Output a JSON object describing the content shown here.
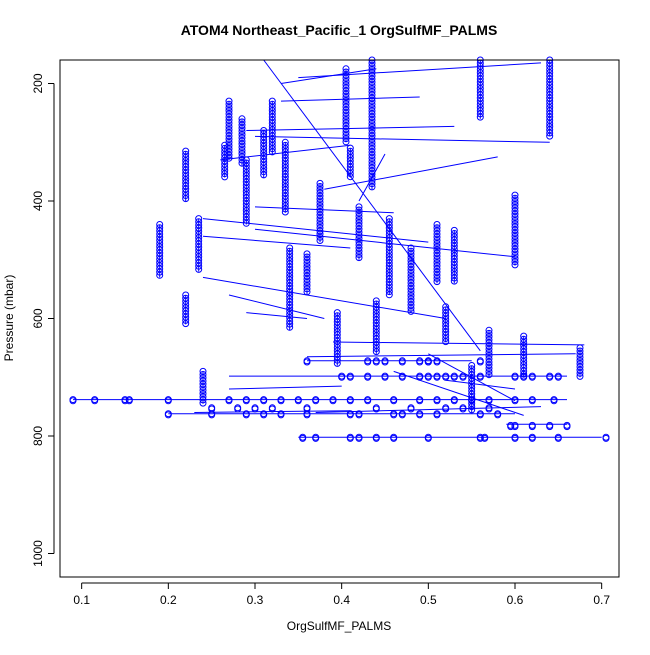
{
  "chart_data": {
    "type": "scatter",
    "title": "ATOM4 Northeast_Pacific_1 OrgSulfMF_PALMS",
    "xlabel": "OrgSulfMF_PALMS",
    "ylabel": "Pressure (mbar)",
    "xlim": [
      0.075,
      0.72
    ],
    "ylim": [
      1040,
      160
    ],
    "y_reversed": true,
    "x_ticks": [
      0.1,
      0.2,
      0.3,
      0.4,
      0.5,
      0.6,
      0.7
    ],
    "y_ticks": [
      200,
      400,
      600,
      800,
      1000
    ],
    "marker": "open-circle",
    "color": "#0000ff",
    "connected": true,
    "vertical_stacks": [
      {
        "x": 0.19,
        "p": [
          440,
          530
        ]
      },
      {
        "x": 0.22,
        "p": [
          315,
          400
        ]
      },
      {
        "x": 0.235,
        "p": [
          430,
          520
        ]
      },
      {
        "x": 0.27,
        "p": [
          230,
          330
        ]
      },
      {
        "x": 0.265,
        "p": [
          305,
          360
        ]
      },
      {
        "x": 0.285,
        "p": [
          260,
          340
        ]
      },
      {
        "x": 0.29,
        "p": [
          330,
          440
        ]
      },
      {
        "x": 0.31,
        "p": [
          280,
          360
        ]
      },
      {
        "x": 0.32,
        "p": [
          230,
          320
        ]
      },
      {
        "x": 0.335,
        "p": [
          300,
          420
        ]
      },
      {
        "x": 0.34,
        "p": [
          480,
          620
        ]
      },
      {
        "x": 0.375,
        "p": [
          370,
          470
        ]
      },
      {
        "x": 0.405,
        "p": [
          175,
          300
        ]
      },
      {
        "x": 0.41,
        "p": [
          310,
          360
        ]
      },
      {
        "x": 0.42,
        "p": [
          410,
          500
        ]
      },
      {
        "x": 0.435,
        "p": [
          160,
          380
        ]
      },
      {
        "x": 0.455,
        "p": [
          430,
          560
        ]
      },
      {
        "x": 0.48,
        "p": [
          480,
          590
        ]
      },
      {
        "x": 0.51,
        "p": [
          440,
          540
        ]
      },
      {
        "x": 0.53,
        "p": [
          450,
          540
        ]
      },
      {
        "x": 0.56,
        "p": [
          160,
          260
        ]
      },
      {
        "x": 0.6,
        "p": [
          390,
          510
        ]
      },
      {
        "x": 0.64,
        "p": [
          160,
          290
        ]
      },
      {
        "x": 0.675,
        "p": [
          650,
          700
        ]
      },
      {
        "x": 0.22,
        "p": [
          560,
          610
        ]
      },
      {
        "x": 0.36,
        "p": [
          490,
          560
        ]
      },
      {
        "x": 0.52,
        "p": [
          580,
          640
        ]
      },
      {
        "x": 0.57,
        "p": [
          620,
          700
        ]
      },
      {
        "x": 0.395,
        "p": [
          590,
          680
        ]
      },
      {
        "x": 0.44,
        "p": [
          570,
          660
        ]
      },
      {
        "x": 0.61,
        "p": [
          630,
          700
        ]
      },
      {
        "x": 0.24,
        "p": [
          690,
          745
        ]
      },
      {
        "x": 0.55,
        "p": [
          680,
          760
        ]
      }
    ],
    "horizontal_runs": [
      {
        "p": 738,
        "x": [
          0.09,
          0.66
        ]
      },
      {
        "p": 762,
        "x": [
          0.2,
          0.6
        ]
      },
      {
        "p": 802,
        "x": [
          0.35,
          0.7
        ]
      },
      {
        "p": 698,
        "x": [
          0.27,
          0.66
        ]
      },
      {
        "p": 672,
        "x": [
          0.36,
          0.55
        ]
      },
      {
        "p": 780,
        "x": [
          0.59,
          0.66
        ]
      }
    ],
    "traj_lines": [
      [
        0.33,
        200,
        0.44,
        175
      ],
      [
        0.35,
        190,
        0.63,
        165
      ],
      [
        0.33,
        230,
        0.49,
        223
      ],
      [
        0.29,
        280,
        0.53,
        273
      ],
      [
        0.3,
        290,
        0.64,
        300
      ],
      [
        0.26,
        330,
        0.41,
        305
      ],
      [
        0.38,
        380,
        0.58,
        325
      ],
      [
        0.3,
        410,
        0.46,
        420
      ],
      [
        0.24,
        430,
        0.5,
        470
      ],
      [
        0.3,
        448,
        0.6,
        495
      ],
      [
        0.24,
        460,
        0.41,
        480
      ],
      [
        0.27,
        560,
        0.38,
        600
      ],
      [
        0.24,
        530,
        0.52,
        600
      ],
      [
        0.29,
        590,
        0.36,
        600
      ],
      [
        0.39,
        640,
        0.68,
        645
      ],
      [
        0.36,
        665,
        0.67,
        660
      ],
      [
        0.27,
        720,
        0.4,
        715
      ],
      [
        0.23,
        760,
        0.41,
        757
      ],
      [
        0.37,
        760,
        0.63,
        750
      ],
      [
        0.5,
        660,
        0.6,
        740
      ],
      [
        0.31,
        160,
        0.56,
        655
      ],
      [
        0.46,
        690,
        0.61,
        765
      ],
      [
        0.42,
        400,
        0.45,
        320
      ],
      [
        0.52,
        705,
        0.6,
        720
      ]
    ],
    "scatter_clusters": [
      {
        "p": 738,
        "x": [
          0.09,
          0.115,
          0.15,
          0.155,
          0.2,
          0.27,
          0.29,
          0.31,
          0.33,
          0.35,
          0.37,
          0.39,
          0.41,
          0.43,
          0.46,
          0.49,
          0.51,
          0.53,
          0.55,
          0.57,
          0.6,
          0.62,
          0.645
        ]
      },
      {
        "p": 762,
        "x": [
          0.2,
          0.25,
          0.29,
          0.31,
          0.33,
          0.36,
          0.41,
          0.42,
          0.46,
          0.47,
          0.49,
          0.51,
          0.56,
          0.58
        ]
      },
      {
        "p": 802,
        "x": [
          0.355,
          0.37,
          0.41,
          0.42,
          0.44,
          0.46,
          0.5,
          0.56,
          0.565,
          0.6,
          0.62,
          0.65,
          0.705
        ]
      },
      {
        "p": 698,
        "x": [
          0.4,
          0.41,
          0.43,
          0.45,
          0.47,
          0.49,
          0.5,
          0.51,
          0.52,
          0.53,
          0.54,
          0.56,
          0.6,
          0.61,
          0.62,
          0.64,
          0.65
        ]
      },
      {
        "p": 672,
        "x": [
          0.36,
          0.43,
          0.44,
          0.45,
          0.47,
          0.49,
          0.5,
          0.5,
          0.51,
          0.56
        ]
      },
      {
        "p": 752,
        "x": [
          0.25,
          0.28,
          0.3,
          0.32,
          0.36,
          0.44,
          0.48,
          0.52,
          0.54,
          0.57
        ]
      },
      {
        "p": 782,
        "x": [
          0.595,
          0.6,
          0.62,
          0.64,
          0.66
        ]
      }
    ],
    "grid": false,
    "legend": "none"
  }
}
